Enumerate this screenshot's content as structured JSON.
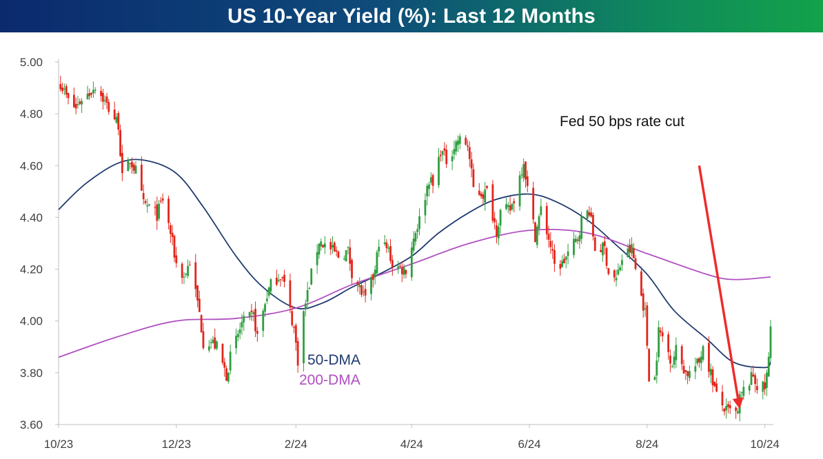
{
  "chart_data": {
    "type": "candlestick",
    "title": "US 10-Year Yield (%): Last 12 Months",
    "xlabel": "",
    "ylabel": "",
    "ylim": [
      3.6,
      5.0
    ],
    "xlim": [
      "2023-10-01",
      "2024-10-04"
    ],
    "grid": false,
    "x_ticks": [
      {
        "date": "2023-10-01",
        "label": "10/23"
      },
      {
        "date": "2023-12-01",
        "label": "12/23"
      },
      {
        "date": "2024-02-01",
        "label": "2/24"
      },
      {
        "date": "2024-04-01",
        "label": "4/24"
      },
      {
        "date": "2024-06-01",
        "label": "6/24"
      },
      {
        "date": "2024-08-01",
        "label": "8/24"
      },
      {
        "date": "2024-10-01",
        "label": "10/24"
      }
    ],
    "y_ticks": [
      "5.00",
      "4.80",
      "4.60",
      "4.40",
      "4.20",
      "4.00",
      "3.80",
      "3.60"
    ],
    "anchors": [
      [
        "2023-10-02",
        4.92
      ],
      [
        "2023-10-06",
        4.85
      ],
      [
        "2023-10-10",
        4.82
      ],
      [
        "2023-10-13",
        4.86
      ],
      [
        "2023-10-17",
        4.88
      ],
      [
        "2023-10-20",
        4.91
      ],
      [
        "2023-10-24",
        4.86
      ],
      [
        "2023-10-27",
        4.82
      ],
      [
        "2023-11-01",
        4.76
      ],
      [
        "2023-11-03",
        4.55
      ],
      [
        "2023-11-07",
        4.62
      ],
      [
        "2023-11-10",
        4.58
      ],
      [
        "2023-11-14",
        4.45
      ],
      [
        "2023-11-17",
        4.44
      ],
      [
        "2023-11-21",
        4.41
      ],
      [
        "2023-11-24",
        4.47
      ],
      [
        "2023-11-28",
        4.34
      ],
      [
        "2023-12-01",
        4.22
      ],
      [
        "2023-12-05",
        4.17
      ],
      [
        "2023-12-08",
        4.23
      ],
      [
        "2023-12-13",
        4.03
      ],
      [
        "2023-12-15",
        3.92
      ],
      [
        "2023-12-19",
        3.92
      ],
      [
        "2023-12-22",
        3.9
      ],
      [
        "2023-12-27",
        3.79
      ],
      [
        "2023-12-29",
        3.86
      ],
      [
        "2024-01-04",
        3.99
      ],
      [
        "2024-01-10",
        4.02
      ],
      [
        "2024-01-12",
        3.94
      ],
      [
        "2024-01-17",
        4.1
      ],
      [
        "2024-01-19",
        4.14
      ],
      [
        "2024-01-24",
        4.18
      ],
      [
        "2024-01-26",
        4.14
      ],
      [
        "2024-01-31",
        3.97
      ],
      [
        "2024-02-02",
        3.85
      ],
      [
        "2024-02-05",
        4.03
      ],
      [
        "2024-02-09",
        4.18
      ],
      [
        "2024-02-13",
        4.31
      ],
      [
        "2024-02-20",
        4.27
      ],
      [
        "2024-02-23",
        4.25
      ],
      [
        "2024-02-28",
        4.27
      ],
      [
        "2024-03-01",
        4.19
      ],
      [
        "2024-03-06",
        4.11
      ],
      [
        "2024-03-08",
        4.08
      ],
      [
        "2024-03-13",
        4.19
      ],
      [
        "2024-03-15",
        4.31
      ],
      [
        "2024-03-20",
        4.27
      ],
      [
        "2024-03-22",
        4.22
      ],
      [
        "2024-03-27",
        4.2
      ],
      [
        "2024-03-29",
        4.2
      ],
      [
        "2024-04-03",
        4.35
      ],
      [
        "2024-04-05",
        4.39
      ],
      [
        "2024-04-10",
        4.55
      ],
      [
        "2024-04-12",
        4.52
      ],
      [
        "2024-04-16",
        4.66
      ],
      [
        "2024-04-19",
        4.62
      ],
      [
        "2024-04-25",
        4.7
      ],
      [
        "2024-04-30",
        4.68
      ],
      [
        "2024-05-03",
        4.51
      ],
      [
        "2024-05-08",
        4.49
      ],
      [
        "2024-05-10",
        4.5
      ],
      [
        "2024-05-15",
        4.35
      ],
      [
        "2024-05-17",
        4.42
      ],
      [
        "2024-05-22",
        4.43
      ],
      [
        "2024-05-24",
        4.47
      ],
      [
        "2024-05-29",
        4.62
      ],
      [
        "2024-05-31",
        4.51
      ],
      [
        "2024-06-04",
        4.33
      ],
      [
        "2024-06-07",
        4.43
      ],
      [
        "2024-06-12",
        4.29
      ],
      [
        "2024-06-14",
        4.21
      ],
      [
        "2024-06-18",
        4.22
      ],
      [
        "2024-06-21",
        4.26
      ],
      [
        "2024-06-26",
        4.32
      ],
      [
        "2024-06-28",
        4.39
      ],
      [
        "2024-07-02",
        4.43
      ],
      [
        "2024-07-05",
        4.28
      ],
      [
        "2024-07-10",
        4.28
      ],
      [
        "2024-07-12",
        4.19
      ],
      [
        "2024-07-16",
        4.16
      ],
      [
        "2024-07-19",
        4.24
      ],
      [
        "2024-07-24",
        4.28
      ],
      [
        "2024-07-26",
        4.2
      ],
      [
        "2024-07-31",
        4.03
      ],
      [
        "2024-08-02",
        3.79
      ],
      [
        "2024-08-05",
        3.78
      ],
      [
        "2024-08-07",
        3.96
      ],
      [
        "2024-08-09",
        3.94
      ],
      [
        "2024-08-14",
        3.84
      ],
      [
        "2024-08-16",
        3.89
      ],
      [
        "2024-08-21",
        3.8
      ],
      [
        "2024-08-23",
        3.8
      ],
      [
        "2024-08-28",
        3.84
      ],
      [
        "2024-08-30",
        3.91
      ],
      [
        "2024-09-04",
        3.77
      ],
      [
        "2024-09-06",
        3.71
      ],
      [
        "2024-09-11",
        3.65
      ],
      [
        "2024-09-13",
        3.65
      ],
      [
        "2024-09-17",
        3.64
      ],
      [
        "2024-09-18",
        3.7
      ],
      [
        "2024-09-20",
        3.73
      ],
      [
        "2024-09-25",
        3.79
      ],
      [
        "2024-09-27",
        3.75
      ],
      [
        "2024-10-01",
        3.74
      ],
      [
        "2024-10-02",
        3.79
      ],
      [
        "2024-10-03",
        3.85
      ],
      [
        "2024-10-04",
        3.98
      ]
    ],
    "series": [
      {
        "name": "50-DMA",
        "color": "#1f3a6e",
        "points": [
          [
            "2023-10-01",
            4.43
          ],
          [
            "2023-10-15",
            4.53
          ],
          [
            "2023-11-01",
            4.61
          ],
          [
            "2023-11-15",
            4.62
          ],
          [
            "2023-12-01",
            4.57
          ],
          [
            "2023-12-15",
            4.44
          ],
          [
            "2024-01-01",
            4.25
          ],
          [
            "2024-01-15",
            4.13
          ],
          [
            "2024-02-01",
            4.05
          ],
          [
            "2024-02-15",
            4.07
          ],
          [
            "2024-03-01",
            4.13
          ],
          [
            "2024-03-15",
            4.18
          ],
          [
            "2024-04-01",
            4.25
          ],
          [
            "2024-04-15",
            4.34
          ],
          [
            "2024-05-01",
            4.42
          ],
          [
            "2024-05-15",
            4.47
          ],
          [
            "2024-06-01",
            4.49
          ],
          [
            "2024-06-15",
            4.46
          ],
          [
            "2024-07-01",
            4.39
          ],
          [
            "2024-07-15",
            4.3
          ],
          [
            "2024-08-01",
            4.18
          ],
          [
            "2024-08-15",
            4.04
          ],
          [
            "2024-09-01",
            3.93
          ],
          [
            "2024-09-15",
            3.84
          ],
          [
            "2024-10-01",
            3.82
          ],
          [
            "2024-10-04",
            3.84
          ]
        ]
      },
      {
        "name": "200-DMA",
        "color": "#b04fc0",
        "points": [
          [
            "2023-10-01",
            3.86
          ],
          [
            "2023-11-01",
            3.94
          ],
          [
            "2023-12-01",
            4.0
          ],
          [
            "2024-01-01",
            4.01
          ],
          [
            "2024-02-01",
            4.05
          ],
          [
            "2024-03-01",
            4.14
          ],
          [
            "2024-04-01",
            4.22
          ],
          [
            "2024-05-01",
            4.3
          ],
          [
            "2024-06-01",
            4.35
          ],
          [
            "2024-07-01",
            4.34
          ],
          [
            "2024-08-01",
            4.26
          ],
          [
            "2024-09-01",
            4.18
          ],
          [
            "2024-09-15",
            4.16
          ],
          [
            "2024-10-04",
            4.17
          ]
        ]
      }
    ],
    "candle_colors": {
      "up": "#2e9e3e",
      "down": "#e1261c"
    },
    "annotations": [
      {
        "text": "Fed 50 bps rate cut",
        "color": "#111111"
      },
      {
        "text": "50-DMA",
        "color": "#1f3a6e"
      },
      {
        "text": "200-DMA",
        "color": "#b04fc0"
      }
    ],
    "arrow": {
      "from": [
        "2024-08-28",
        4.6
      ],
      "to": [
        "2024-09-18",
        3.66
      ],
      "color": "#ee2b2b"
    }
  }
}
